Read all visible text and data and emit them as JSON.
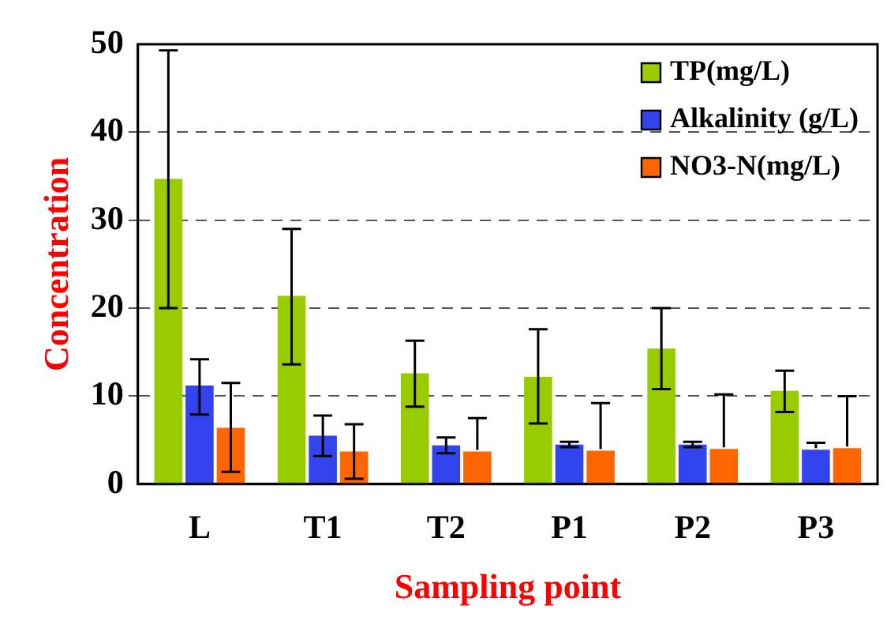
{
  "chart_data": {
    "type": "bar",
    "xlabel": "Sampling point",
    "ylabel": "Concentration",
    "categories": [
      "L",
      "T1",
      "T2",
      "P1",
      "P2",
      "P3"
    ],
    "series": [
      {
        "name": "TP(mg/L)",
        "color": "#99cc00",
        "values": [
          34.7,
          21.4,
          12.6,
          12.2,
          15.4,
          10.6
        ],
        "errors": [
          [
            20,
            49.3
          ],
          [
            13.6,
            29
          ],
          [
            8.8,
            16.3
          ],
          [
            6.9,
            17.6
          ],
          [
            10.8,
            20
          ],
          [
            8.2,
            12.9
          ]
        ]
      },
      {
        "name": "Alkalinity (g/L)",
        "color": "#3344ee",
        "values": [
          11.2,
          5.5,
          4.4,
          4.5,
          4.5,
          3.9
        ],
        "errors": [
          [
            7.9,
            14.2
          ],
          [
            3.2,
            7.8
          ],
          [
            3.5,
            5.3
          ],
          [
            4.2,
            4.8
          ],
          [
            4.2,
            4.8
          ],
          [
            3.9,
            4.7
          ]
        ]
      },
      {
        "name": "NO3-N(mg/L)",
        "color": "#ff6600",
        "values": [
          6.4,
          3.7,
          3.7,
          3.8,
          4.0,
          4.1
        ],
        "errors": [
          [
            1.4,
            11.5
          ],
          [
            0.6,
            6.8
          ],
          [
            3.7,
            7.5
          ],
          [
            3.8,
            9.2
          ],
          [
            4.0,
            10.2
          ],
          [
            4.1,
            10
          ]
        ]
      }
    ],
    "ylim": [
      0,
      50
    ],
    "yticks": [
      0,
      10,
      20,
      30,
      40,
      50
    ],
    "grid": "y",
    "legend": "top right"
  }
}
